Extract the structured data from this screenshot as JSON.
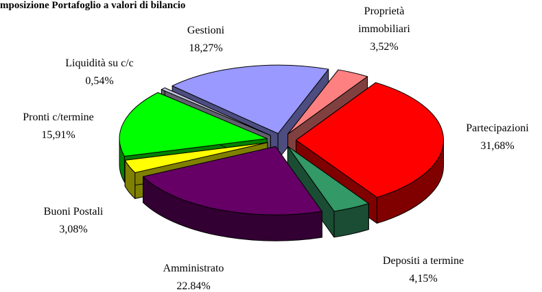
{
  "chart_data": {
    "type": "pie3d",
    "title": "mposizione Portafoglio a valori di bilancio",
    "categories": [
      "Proprietà immobiliari",
      "Partecipazioni",
      "Depositi a termine",
      "Amministrato",
      "Buoni Postali",
      "Pronti c/termine",
      "Liquidità su c/c",
      "Gestioni"
    ],
    "values": [
      3.52,
      31.68,
      4.15,
      22.84,
      3.08,
      15.91,
      0.54,
      18.27
    ],
    "value_labels": [
      "3,52%",
      "31,68%",
      "4,15%",
      "22.84%",
      "3,08%",
      "15,91%",
      "0,54%",
      "18,27%"
    ],
    "colors": [
      "#ff8080",
      "#ff0000",
      "#339966",
      "#660066",
      "#ffff00",
      "#00ff00",
      "#c0c0dc",
      "#9999ff"
    ]
  }
}
